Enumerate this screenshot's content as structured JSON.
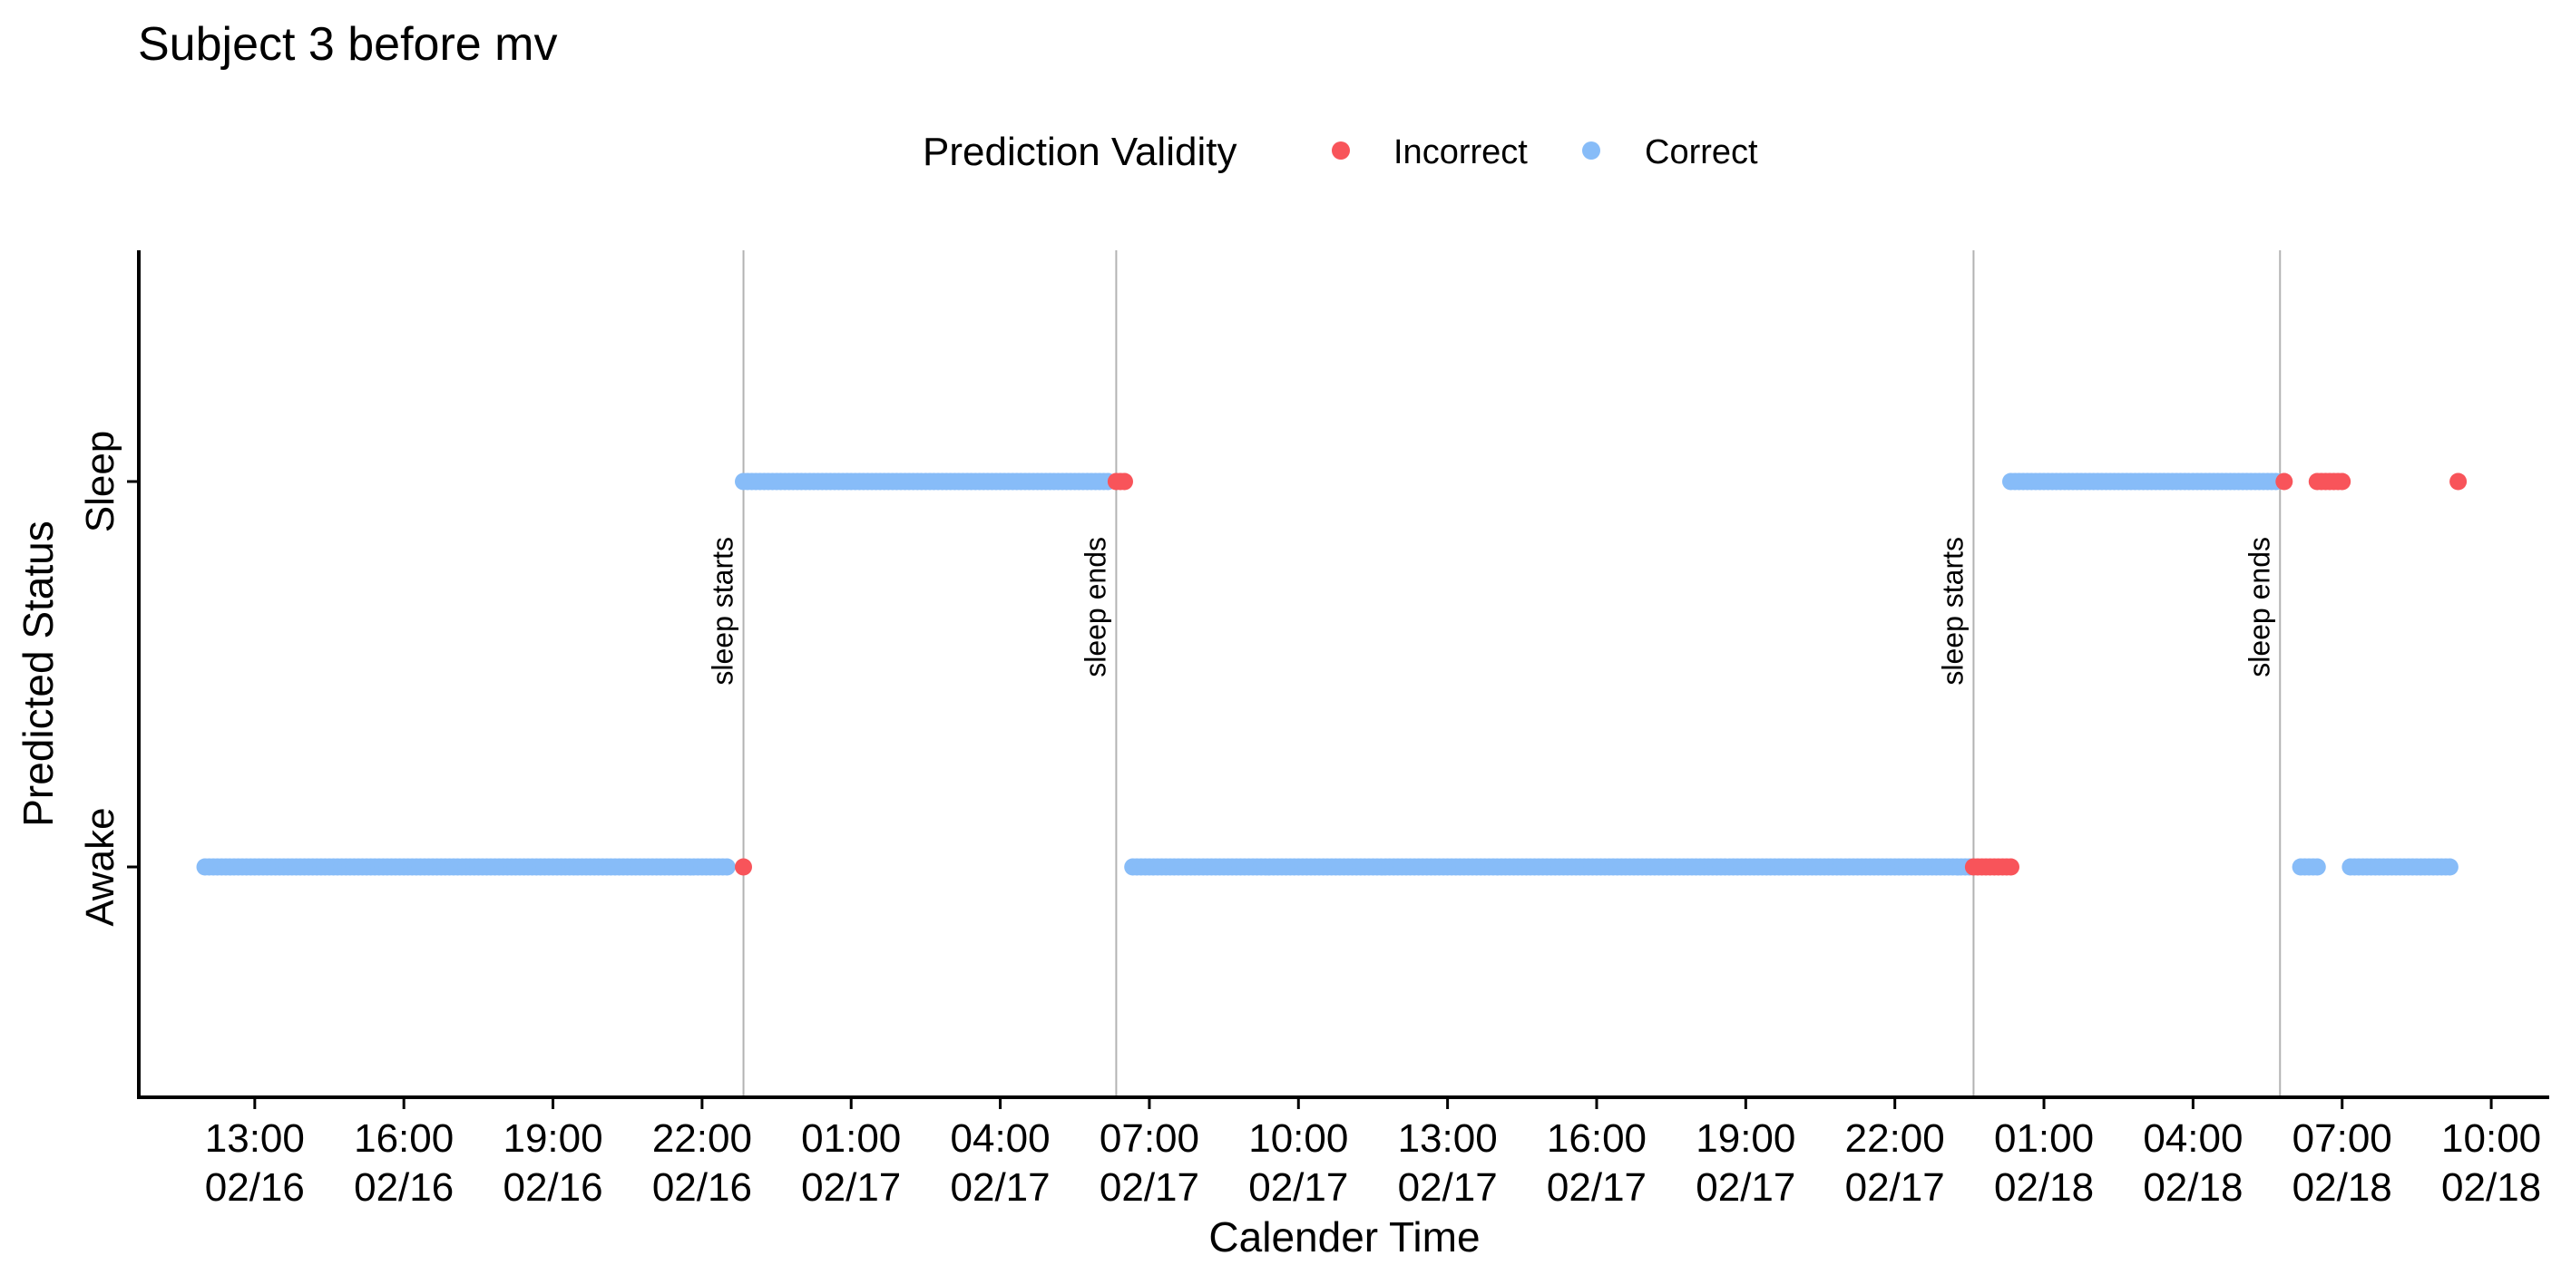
{
  "chart_data": {
    "type": "scatter",
    "title": "Subject 3  before mv",
    "xlabel": "Calender Time",
    "ylabel": "Predicted Status",
    "y_categories": [
      "Awake",
      "Sleep"
    ],
    "x_range": [
      "2025-02-16T10:40",
      "2025-02-18T11:10"
    ],
    "x_ticks": [
      {
        "t": "2025-02-16T13:00",
        "time": "13:00",
        "date": "02/16"
      },
      {
        "t": "2025-02-16T16:00",
        "time": "16:00",
        "date": "02/16"
      },
      {
        "t": "2025-02-16T19:00",
        "time": "19:00",
        "date": "02/16"
      },
      {
        "t": "2025-02-16T22:00",
        "time": "22:00",
        "date": "02/16"
      },
      {
        "t": "2025-02-17T01:00",
        "time": "01:00",
        "date": "02/17"
      },
      {
        "t": "2025-02-17T04:00",
        "time": "04:00",
        "date": "02/17"
      },
      {
        "t": "2025-02-17T07:00",
        "time": "07:00",
        "date": "02/17"
      },
      {
        "t": "2025-02-17T10:00",
        "time": "10:00",
        "date": "02/17"
      },
      {
        "t": "2025-02-17T13:00",
        "time": "13:00",
        "date": "02/17"
      },
      {
        "t": "2025-02-17T16:00",
        "time": "16:00",
        "date": "02/17"
      },
      {
        "t": "2025-02-17T19:00",
        "time": "19:00",
        "date": "02/17"
      },
      {
        "t": "2025-02-17T22:00",
        "time": "22:00",
        "date": "02/17"
      },
      {
        "t": "2025-02-18T01:00",
        "time": "01:00",
        "date": "02/18"
      },
      {
        "t": "2025-02-18T04:00",
        "time": "04:00",
        "date": "02/18"
      },
      {
        "t": "2025-02-18T07:00",
        "time": "07:00",
        "date": "02/18"
      },
      {
        "t": "2025-02-18T10:00",
        "time": "10:00",
        "date": "02/18"
      }
    ],
    "legend": {
      "title": "Prediction Validity",
      "position": "top",
      "entries": [
        {
          "label": "Incorrect",
          "color": "#F8545A"
        },
        {
          "label": "Correct",
          "color": "#87BCF8"
        }
      ]
    },
    "vertical_lines": [
      {
        "t": "2025-02-16T22:50",
        "label": "sleep starts"
      },
      {
        "t": "2025-02-17T06:20",
        "label": "sleep ends"
      },
      {
        "t": "2025-02-17T23:35",
        "label": "sleep starts"
      },
      {
        "t": "2025-02-18T05:45",
        "label": "sleep ends"
      }
    ],
    "series": [
      {
        "name": "Correct",
        "color": "#87BCF8",
        "segments": [
          {
            "status": "Awake",
            "start": "2025-02-16T12:00",
            "end": "2025-02-16T22:30"
          },
          {
            "status": "Sleep",
            "start": "2025-02-16T22:50",
            "end": "2025-02-17T06:10"
          },
          {
            "status": "Awake",
            "start": "2025-02-17T06:40",
            "end": "2025-02-17T23:30"
          },
          {
            "status": "Sleep",
            "start": "2025-02-18T00:20",
            "end": "2025-02-18T05:40"
          },
          {
            "status": "Awake",
            "start": "2025-02-18T06:10",
            "end": "2025-02-18T06:30"
          },
          {
            "status": "Awake",
            "start": "2025-02-18T07:10",
            "end": "2025-02-18T09:10"
          }
        ]
      },
      {
        "name": "Incorrect",
        "color": "#F8545A",
        "segments": [
          {
            "status": "Awake",
            "start": "2025-02-16T22:50",
            "end": "2025-02-16T22:50"
          },
          {
            "status": "Sleep",
            "start": "2025-02-17T06:20",
            "end": "2025-02-17T06:30"
          },
          {
            "status": "Awake",
            "start": "2025-02-17T23:35",
            "end": "2025-02-18T00:20"
          },
          {
            "status": "Sleep",
            "start": "2025-02-18T05:50",
            "end": "2025-02-18T05:50"
          },
          {
            "status": "Sleep",
            "start": "2025-02-18T06:30",
            "end": "2025-02-18T07:00"
          },
          {
            "status": "Sleep",
            "start": "2025-02-18T09:20",
            "end": "2025-02-18T09:20"
          }
        ]
      }
    ],
    "grid": false
  }
}
